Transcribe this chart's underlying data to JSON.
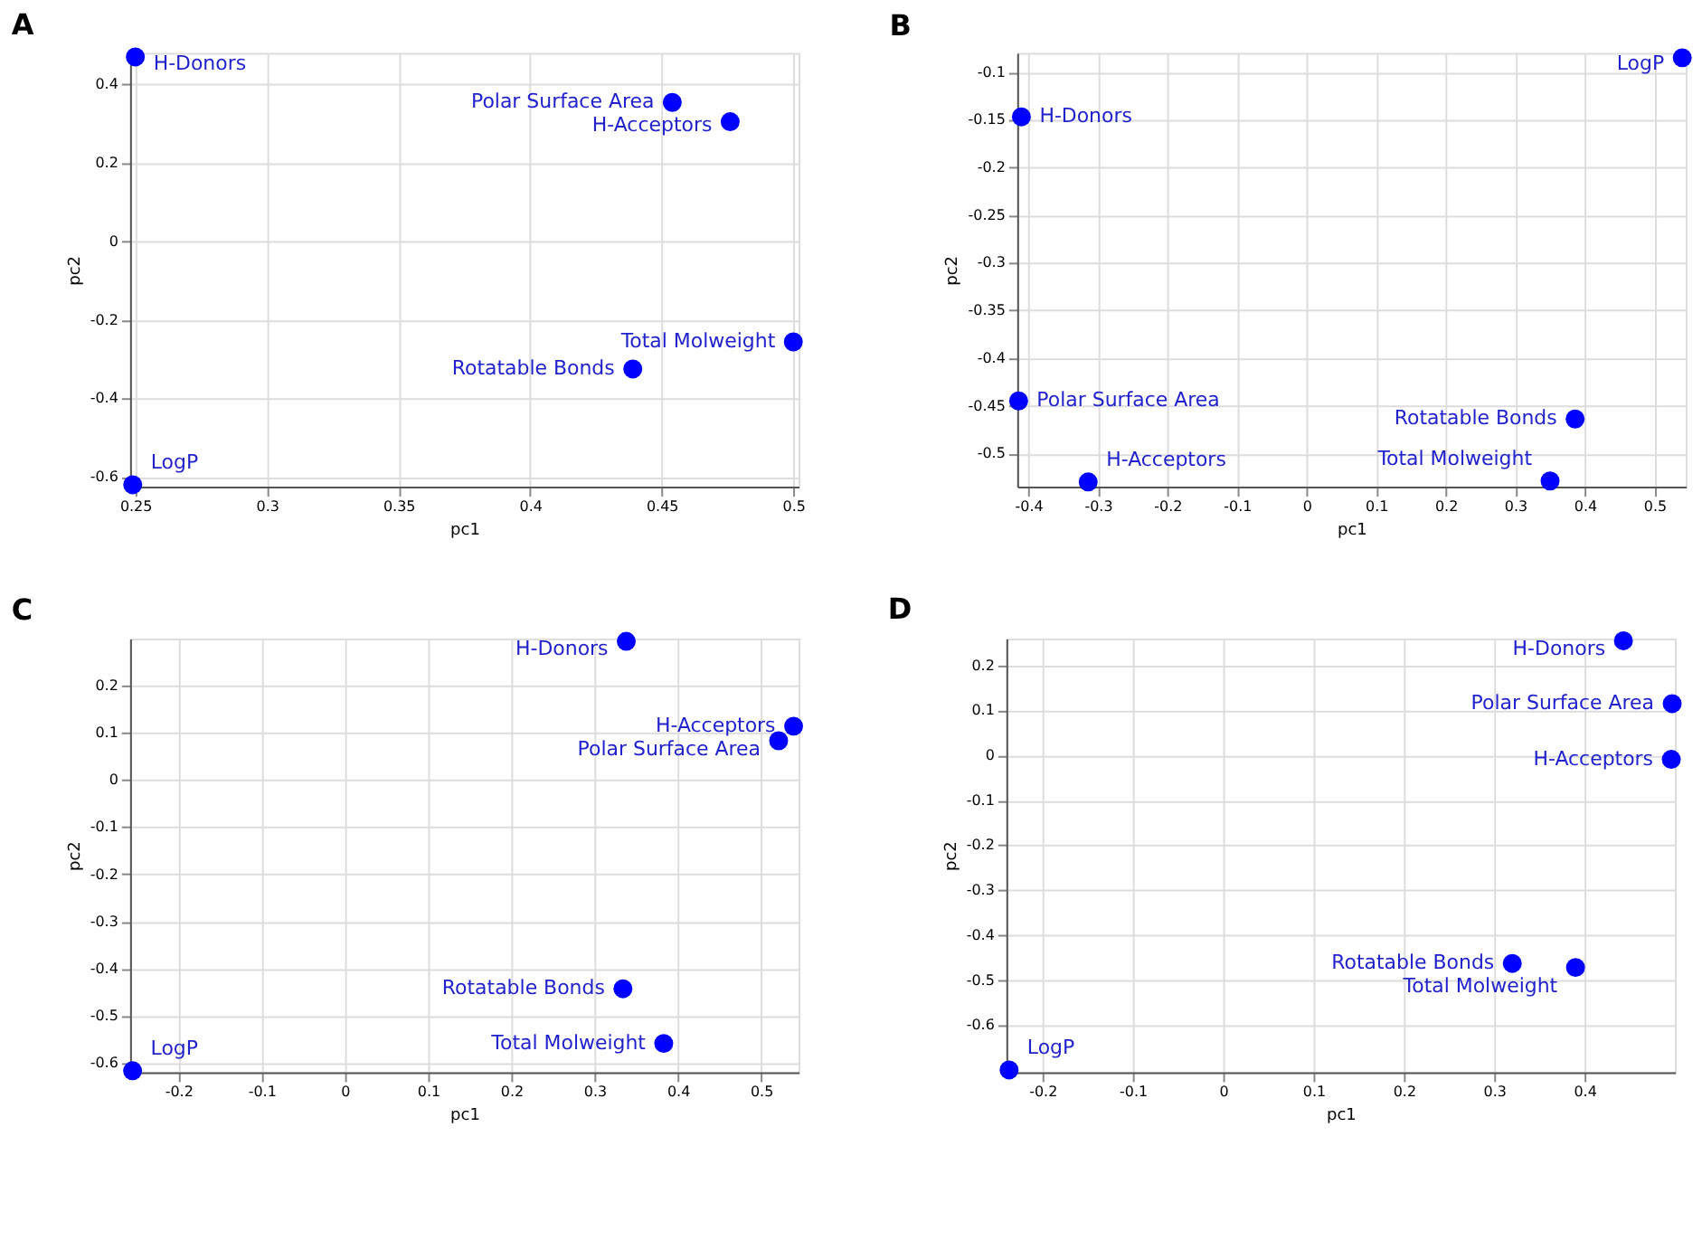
{
  "chart_data": [
    {
      "type": "scatter",
      "title": "A",
      "xlabel": "pc1",
      "ylabel": "pc2",
      "marker": "circle",
      "grid": true,
      "x": [
        0.25,
        0.454,
        0.476,
        0.5,
        0.439,
        0.249
      ],
      "series": [
        {
          "color": "#0000ff",
          "values": [
            0.47,
            0.354,
            0.305,
            -0.256,
            -0.325,
            -0.62
          ]
        }
      ],
      "xlim": [
        0.248,
        0.502
      ],
      "ylim": [
        -0.625,
        0.48
      ],
      "xticks": [
        0.25,
        0.3,
        0.35,
        0.4,
        0.45,
        0.5
      ],
      "yticks": [
        -0.6,
        -0.4,
        -0.2,
        0,
        0.2,
        0.4
      ],
      "annotations": [
        {
          "text": "H-Donors",
          "x": 0.25,
          "y": 0.47
        },
        {
          "text": "Polar Surface Area",
          "x": 0.454,
          "y": 0.354
        },
        {
          "text": "H-Acceptors",
          "x": 0.476,
          "y": 0.305
        },
        {
          "text": "Total Molweight",
          "x": 0.5,
          "y": -0.256
        },
        {
          "text": "Rotatable Bonds",
          "x": 0.439,
          "y": -0.325
        },
        {
          "text": "LogP",
          "x": 0.249,
          "y": -0.62
        }
      ]
    },
    {
      "type": "scatter",
      "title": "B",
      "xlabel": "pc1",
      "ylabel": "pc2",
      "marker": "circle",
      "grid": true,
      "x": [
        0.54,
        -0.41,
        -0.414,
        0.386,
        0.35,
        -0.314
      ],
      "series": [
        {
          "color": "#0000ff",
          "values": [
            -0.085,
            -0.147,
            -0.445,
            -0.464,
            -0.529,
            -0.53
          ]
        }
      ],
      "xlim": [
        -0.416,
        0.545
      ],
      "ylim": [
        -0.535,
        -0.08
      ],
      "xticks": [
        -0.4,
        -0.3,
        -0.2,
        -0.1,
        0,
        0.1,
        0.2,
        0.3,
        0.4,
        0.5
      ],
      "yticks": [
        -0.5,
        -0.45,
        -0.4,
        -0.35,
        -0.3,
        -0.25,
        -0.2,
        -0.15,
        -0.1
      ],
      "annotations": [
        {
          "text": "LogP",
          "x": 0.54,
          "y": -0.085
        },
        {
          "text": "H-Donors",
          "x": -0.41,
          "y": -0.147
        },
        {
          "text": "Polar Surface Area",
          "x": -0.414,
          "y": -0.445
        },
        {
          "text": "Rotatable Bonds",
          "x": 0.386,
          "y": -0.464
        },
        {
          "text": "Total Molweight",
          "x": 0.35,
          "y": -0.529
        },
        {
          "text": "H-Acceptors",
          "x": -0.314,
          "y": -0.53
        }
      ]
    },
    {
      "type": "scatter",
      "title": "C",
      "xlabel": "pc1",
      "ylabel": "pc2",
      "marker": "circle",
      "grid": true,
      "x": [
        0.338,
        0.539,
        0.521,
        0.334,
        0.383,
        -0.255
      ],
      "series": [
        {
          "color": "#0000ff",
          "values": [
            0.294,
            0.114,
            0.083,
            -0.443,
            -0.559,
            -0.617
          ]
        }
      ],
      "xlim": [
        -0.258,
        0.545
      ],
      "ylim": [
        -0.62,
        0.3
      ],
      "xticks": [
        -0.2,
        -0.1,
        0,
        0.1,
        0.2,
        0.3,
        0.4,
        0.5
      ],
      "yticks": [
        -0.6,
        -0.5,
        -0.4,
        -0.3,
        -0.2,
        -0.1,
        0,
        0.1,
        0.2
      ],
      "annotations": [
        {
          "text": "H-Donors",
          "x": 0.338,
          "y": 0.294
        },
        {
          "text": "H-Acceptors",
          "x": 0.539,
          "y": 0.114
        },
        {
          "text": "Polar Surface Area",
          "x": 0.521,
          "y": 0.083
        },
        {
          "text": "Rotatable Bonds",
          "x": 0.334,
          "y": -0.443
        },
        {
          "text": "Total Molweight",
          "x": 0.383,
          "y": -0.559
        },
        {
          "text": "LogP",
          "x": -0.255,
          "y": -0.617
        }
      ]
    },
    {
      "type": "scatter",
      "title": "D",
      "xlabel": "pc1",
      "ylabel": "pc2",
      "marker": "circle",
      "grid": true,
      "x": [
        0.443,
        0.497,
        0.496,
        0.32,
        0.39,
        -0.237
      ],
      "series": [
        {
          "color": "#0000ff",
          "values": [
            0.255,
            0.115,
            -0.009,
            -0.463,
            -0.472,
            -0.7
          ]
        }
      ],
      "xlim": [
        -0.24,
        0.5
      ],
      "ylim": [
        -0.705,
        0.26
      ],
      "xticks": [
        -0.2,
        -0.1,
        0,
        0.1,
        0.2,
        0.3,
        0.4
      ],
      "yticks": [
        -0.6,
        -0.5,
        -0.4,
        -0.3,
        -0.2,
        -0.1,
        0,
        0.1,
        0.2
      ],
      "annotations": [
        {
          "text": "H-Donors",
          "x": 0.443,
          "y": 0.255
        },
        {
          "text": "Polar Surface Area",
          "x": 0.497,
          "y": 0.115
        },
        {
          "text": "H-Acceptors",
          "x": 0.496,
          "y": -0.009
        },
        {
          "text": "Rotatable Bonds",
          "x": 0.32,
          "y": -0.463
        },
        {
          "text": "Total Molweight",
          "x": 0.39,
          "y": -0.472
        },
        {
          "text": "LogP",
          "x": -0.237,
          "y": -0.7
        }
      ]
    }
  ]
}
